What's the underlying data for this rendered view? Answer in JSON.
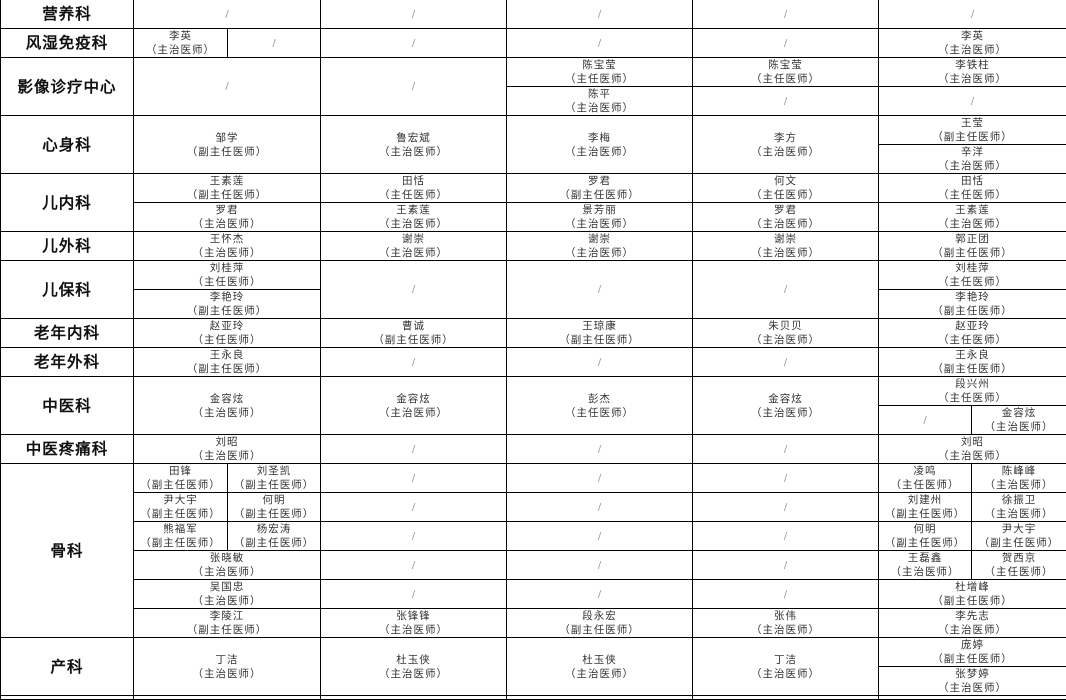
{
  "departments": [
    {
      "name": "营养科",
      "cells": [
        "/",
        "/",
        "/",
        "/",
        "/"
      ]
    },
    {
      "name": "风湿免疫科",
      "cells": [
        {
          "name": "李英",
          "title": "（主治医师）"
        },
        "/",
        "/",
        "/",
        "/",
        {
          "name": "李英",
          "title": "（主治医师）"
        }
      ]
    },
    {
      "name": "影像诊疗中心",
      "cells": [
        "/",
        "/",
        {
          "name": "陈宝莹",
          "title": "（主任医师）"
        },
        {
          "name": "陈宝莹",
          "title": "（主任医师）"
        },
        {
          "name": "李铁柱",
          "title": "（主治医师）"
        },
        {
          "name": "陈平",
          "title": "（主治医师）"
        },
        "/",
        "/"
      ]
    },
    {
      "name": "心身科",
      "cells": [
        {
          "name": "邹学",
          "title": "（副主任医师）"
        },
        {
          "name": "鲁宏斌",
          "title": "（主治医师）"
        },
        {
          "name": "李梅",
          "title": "（主治医师）"
        },
        {
          "name": "李方",
          "title": "（主治医师）"
        },
        {
          "name": "王莹",
          "title": "（副主任医师）"
        },
        {
          "name": "辛洋",
          "title": "（主治医师）"
        }
      ]
    },
    {
      "name": "儿内科",
      "cells": [
        {
          "name": "王素莲",
          "title": "（副主任医师）"
        },
        {
          "name": "田恬",
          "title": "（主任医师）"
        },
        {
          "name": "罗君",
          "title": "（副主任医师）"
        },
        {
          "name": "何文",
          "title": "（主任医师）"
        },
        {
          "name": "田恬",
          "title": "（主任医师）"
        },
        {
          "name": "罗君",
          "title": "（主治医师）"
        },
        {
          "name": "王素莲",
          "title": "（主治医师）"
        },
        {
          "name": "景芳丽",
          "title": "（主治医师）"
        },
        {
          "name": "罗君",
          "title": "（主治医师）"
        },
        {
          "name": "王素莲",
          "title": "（主治医师）"
        }
      ]
    },
    {
      "name": "儿外科",
      "cells": [
        {
          "name": "王怀杰",
          "title": "（主治医师）"
        },
        {
          "name": "谢崇",
          "title": "（主治医师）"
        },
        {
          "name": "谢崇",
          "title": "（主治医师）"
        },
        {
          "name": "谢崇",
          "title": "（主治医师）"
        },
        {
          "name": "郭正团",
          "title": "（副主任医师）"
        }
      ]
    },
    {
      "name": "儿保科",
      "cells": [
        {
          "name": "刘桂萍",
          "title": "（主任医师）"
        },
        "/",
        "/",
        "/",
        {
          "name": "刘桂萍",
          "title": "（主任医师）"
        },
        {
          "name": "李艳玲",
          "title": "（副主任医师）"
        },
        {
          "name": "李艳玲",
          "title": "（副主任医师）"
        }
      ]
    },
    {
      "name": "老年内科",
      "cells": [
        {
          "name": "赵亚玲",
          "title": "（主任医师）"
        },
        {
          "name": "曹诚",
          "title": "（副主任医师）"
        },
        {
          "name": "王琼康",
          "title": "（副主任医师）"
        },
        {
          "name": "朱贝贝",
          "title": "（主治医师）"
        },
        {
          "name": "赵亚玲",
          "title": "（主任医师）"
        }
      ]
    },
    {
      "name": "老年外科",
      "cells": [
        {
          "name": "王永良",
          "title": "（副主任医师）"
        },
        "/",
        "/",
        "/",
        {
          "name": "王永良",
          "title": "（副主任医师）"
        }
      ]
    },
    {
      "name": "中医科",
      "cells": [
        {
          "name": "金容炫",
          "title": "（主治医师）"
        },
        {
          "name": "金容炫",
          "title": "（主治医师）"
        },
        {
          "name": "彭杰",
          "title": "（主任医师）"
        },
        {
          "name": "金容炫",
          "title": "（主治医师）"
        },
        {
          "name": "段兴州",
          "title": "（主任医师）"
        },
        "/",
        {
          "name": "金容炫",
          "title": "（主治医师）"
        }
      ]
    },
    {
      "name": "中医疼痛科",
      "cells": [
        {
          "name": "刘昭",
          "title": "（主治医师）"
        },
        "/",
        "/",
        "/",
        {
          "name": "刘昭",
          "title": "（主治医师）"
        }
      ]
    },
    {
      "name": "骨科",
      "cells": [
        {
          "name": "田锋",
          "title": "（副主任医师）"
        },
        {
          "name": "刘圣凯",
          "title": "（副主任医师）"
        },
        "/",
        "/",
        "/",
        {
          "name": "凌鸣",
          "title": "（主任医师）"
        },
        {
          "name": "陈峰峰",
          "title": "（主治医师）"
        },
        {
          "name": "尹大宇",
          "title": "（副主任医师）"
        },
        {
          "name": "何明",
          "title": "（副主任医师）"
        },
        "/",
        "/",
        "/",
        {
          "name": "刘建州",
          "title": "（副主任医师）"
        },
        {
          "name": "徐振卫",
          "title": "（主治医师）"
        },
        {
          "name": "熊福军",
          "title": "（副主任医师）"
        },
        {
          "name": "杨宏涛",
          "title": "（副主任医师）"
        },
        "/",
        "/",
        "/",
        {
          "name": "何明",
          "title": "（副主任医师）"
        },
        {
          "name": "尹大宇",
          "title": "（副主任医师）"
        },
        {
          "name": "张晓敏",
          "title": "（主治医师）"
        },
        "/",
        "/",
        "/",
        {
          "name": "王磊鑫",
          "title": "（主治医师）"
        },
        {
          "name": "贺西京",
          "title": "（主任医师）"
        },
        {
          "name": "吴国忠",
          "title": "（主治医师）"
        },
        "/",
        "/",
        "/",
        {
          "name": "杜增峰",
          "title": "（副主任医师）"
        },
        {
          "name": "李陵江",
          "title": "（副主任医师）"
        },
        {
          "name": "张锋锋",
          "title": "（主治医师）"
        },
        {
          "name": "段永宏",
          "title": "（副主任医师）"
        },
        {
          "name": "张伟",
          "title": "（主治医师）"
        },
        {
          "name": "李先志",
          "title": "（主治医师）"
        }
      ]
    },
    {
      "name": "产科",
      "cells": [
        {
          "name": "丁洁",
          "title": "（主治医师）"
        },
        {
          "name": "杜玉侠",
          "title": "（主治医师）"
        },
        {
          "name": "杜玉侠",
          "title": "（主治医师）"
        },
        {
          "name": "丁洁",
          "title": "（主治医师）"
        },
        {
          "name": "庞婷",
          "title": "（副主任医师）"
        },
        {
          "name": "张梦婷",
          "title": "（主治医师）"
        }
      ]
    }
  ]
}
